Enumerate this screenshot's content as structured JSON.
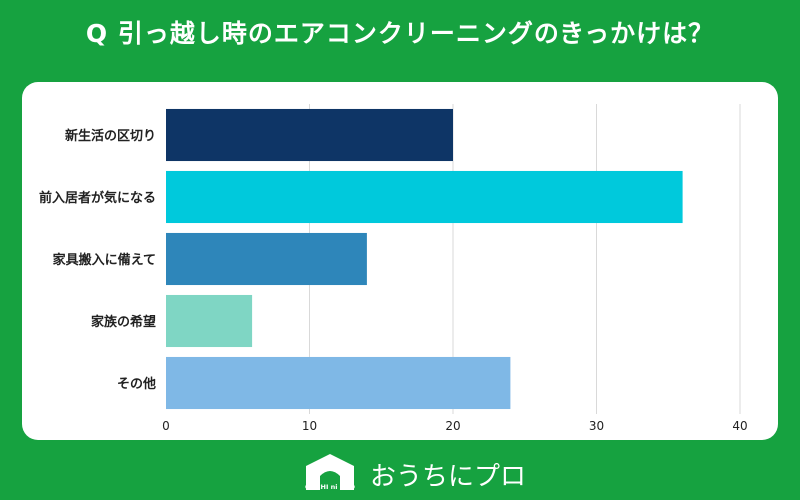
{
  "header": {
    "title": "Q 引っ越し時のエアコンクリーニングのきっかけは？"
  },
  "chart_data": {
    "type": "bar",
    "orientation": "horizontal",
    "categories": [
      "新生活の区切り",
      "前入居者が気になる",
      "家具搬入に備えて",
      "家族の希望",
      "その他"
    ],
    "values": [
      20,
      36,
      14,
      6,
      24
    ],
    "colors": [
      "#0e3566",
      "#00c9dc",
      "#2e86ba",
      "#7fd6c4",
      "#7fb8e6"
    ],
    "xlim": [
      0,
      40
    ],
    "xticks": [
      0,
      10,
      20,
      30,
      40
    ],
    "grid": true,
    "title": "",
    "xlabel": "",
    "ylabel": ""
  },
  "footer": {
    "brand": "おうちにプロ",
    "logo_text": "OUCHI ni PRO"
  }
}
